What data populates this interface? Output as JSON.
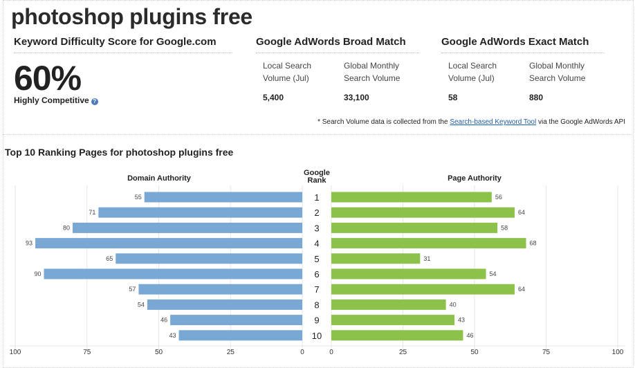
{
  "keyword": "photoshop plugins free",
  "difficulty": {
    "heading": "Keyword Difficulty Score for Google.com",
    "score": "60%",
    "label": "Highly Competitive",
    "help_icon": "question-icon"
  },
  "broad_match": {
    "heading": "Google AdWords Broad Match",
    "local_label": "Local Search Volume (Jul)",
    "local_value": "5,400",
    "global_label": "Global Monthly Search Volume",
    "global_value": "33,100"
  },
  "exact_match": {
    "heading": "Google AdWords Exact Match",
    "local_label": "Local Search Volume (Jul)",
    "local_value": "58",
    "global_label": "Global Monthly Search Volume",
    "global_value": "880"
  },
  "footnote": {
    "prefix": "* Search Volume data is collected from the",
    "link": "Search-based Keyword Tool",
    "suffix": "via the Google AdWords API"
  },
  "ranking": {
    "title": "Top 10 Ranking Pages for photoshop plugins free",
    "domain_head": "Domain Authority",
    "rank_head_1": "Google",
    "rank_head_2": "Rank",
    "page_head": "Page Authority"
  },
  "colors": {
    "domain_bar": "#7aa8d4",
    "page_bar": "#8cc24a",
    "help_icon": "#4a7cb8"
  },
  "chart_data": {
    "type": "bar",
    "orientation": "horizontal-diverging",
    "categories": [
      "1",
      "2",
      "3",
      "4",
      "5",
      "6",
      "7",
      "8",
      "9",
      "10"
    ],
    "series": [
      {
        "name": "Domain Authority",
        "values": [
          55,
          71,
          80,
          93,
          65,
          90,
          57,
          54,
          46,
          43
        ]
      },
      {
        "name": "Page Authority",
        "values": [
          56,
          64,
          58,
          68,
          31,
          54,
          64,
          40,
          43,
          46
        ]
      }
    ],
    "left_ticks": [
      "100",
      "75",
      "50",
      "25",
      "0"
    ],
    "right_ticks": [
      "0",
      "25",
      "50",
      "75",
      "100"
    ],
    "xlim": [
      0,
      100
    ],
    "grid": true
  }
}
